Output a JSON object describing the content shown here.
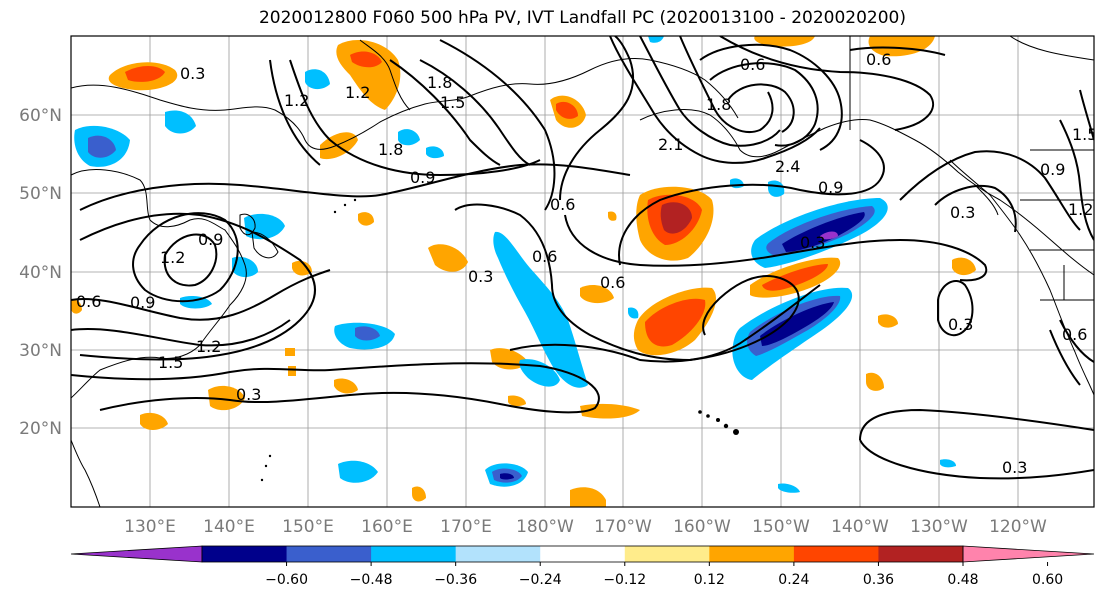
{
  "title": "2020012800 F060 500 hPa PV, IVT Landfall PC (2020013100 - 2020020200)",
  "lon_labels": [
    "130°E",
    "140°E",
    "150°E",
    "160°E",
    "170°E",
    "180°W",
    "170°W",
    "160°W",
    "150°W",
    "140°W",
    "130°W",
    "120°W"
  ],
  "lat_labels": [
    "60°N",
    "50°N",
    "40°N",
    "30°N",
    "20°N"
  ],
  "colorbar": {
    "ticks": [
      "−0.60",
      "−0.48",
      "−0.36",
      "−0.24",
      "−0.12",
      "0.12",
      "0.24",
      "0.36",
      "0.48",
      "0.60"
    ],
    "colors": [
      "#9932cc",
      "#00008b",
      "#3a5fcd",
      "#00bfff",
      "#b2e2fc",
      "#ffffff",
      "#ffec8b",
      "#ffa500",
      "#ff4500",
      "#b22222",
      "#ff83ac"
    ]
  },
  "contour_labels": [
    "0.3",
    "0.6",
    "0.9",
    "1.2",
    "1.5",
    "1.8",
    "2.1",
    "2.4"
  ]
}
